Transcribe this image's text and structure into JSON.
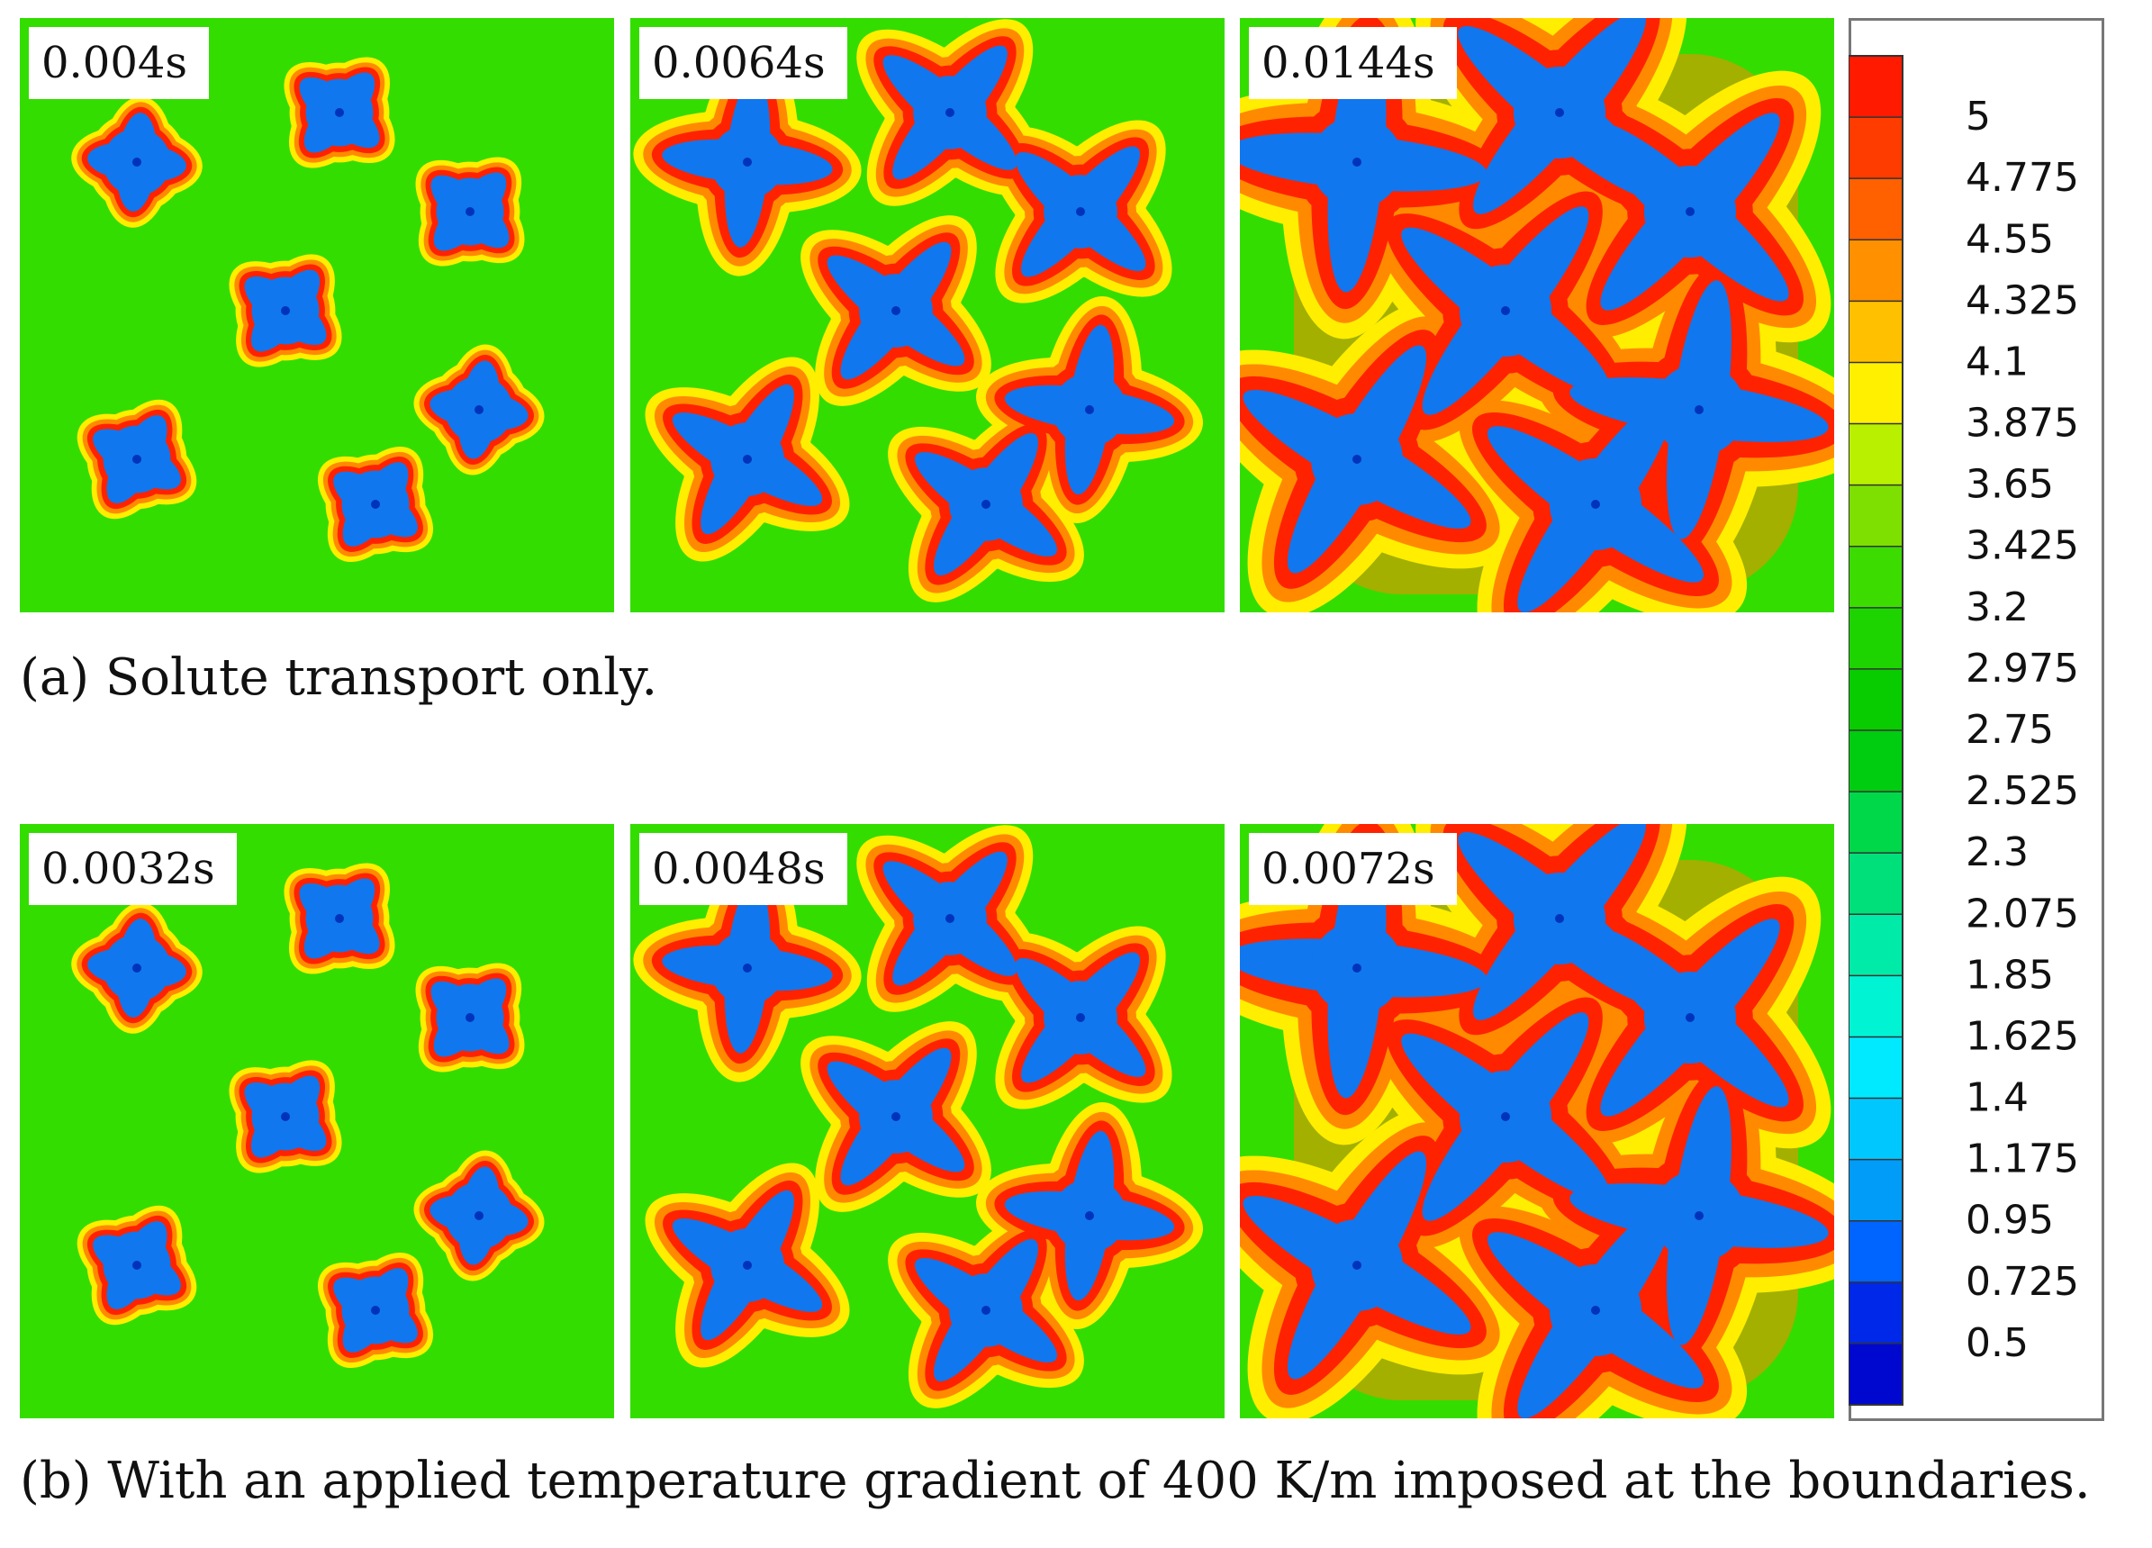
{
  "figure": {
    "row_a": {
      "caption": "(a) Solute transport only.",
      "panels": [
        {
          "time": "0.004s",
          "level": "low"
        },
        {
          "time": "0.0064s",
          "level": "mid"
        },
        {
          "time": "0.0144s",
          "level": "high"
        }
      ]
    },
    "row_b": {
      "caption": "(b) With an applied temperature gradient of 400 K/m imposed at the boundaries.",
      "panels": [
        {
          "time": "0.0032s",
          "level": "low"
        },
        {
          "time": "0.0048s",
          "level": "mid"
        },
        {
          "time": "0.0072s",
          "level": "high"
        }
      ]
    }
  },
  "colorbar": {
    "ticks": [
      "5",
      "4.775",
      "4.55",
      "4.325",
      "4.1",
      "3.875",
      "3.65",
      "3.425",
      "3.2",
      "2.975",
      "2.75",
      "2.525",
      "2.3",
      "2.075",
      "1.85",
      "1.625",
      "1.4",
      "1.175",
      "0.95",
      "0.725",
      "0.5"
    ],
    "colors": [
      "#ff1a00",
      "#ff3c00",
      "#ff6000",
      "#ff9000",
      "#ffc000",
      "#fff000",
      "#b8f000",
      "#7ee000",
      "#3cdc00",
      "#1ed400",
      "#08cc00",
      "#00cc10",
      "#00d84a",
      "#00e07a",
      "#00eaa8",
      "#00f4d4",
      "#00eaff",
      "#00c8ff",
      "#009cf8",
      "#0064ff",
      "#0028e8",
      "#0008d0"
    ]
  },
  "palette": {
    "background": "#33dd00",
    "dendrite": "#1177ee",
    "rim_outer": "#ffee00",
    "rim_mid": "#ff8a00",
    "rim_inner": "#ff2200"
  }
}
